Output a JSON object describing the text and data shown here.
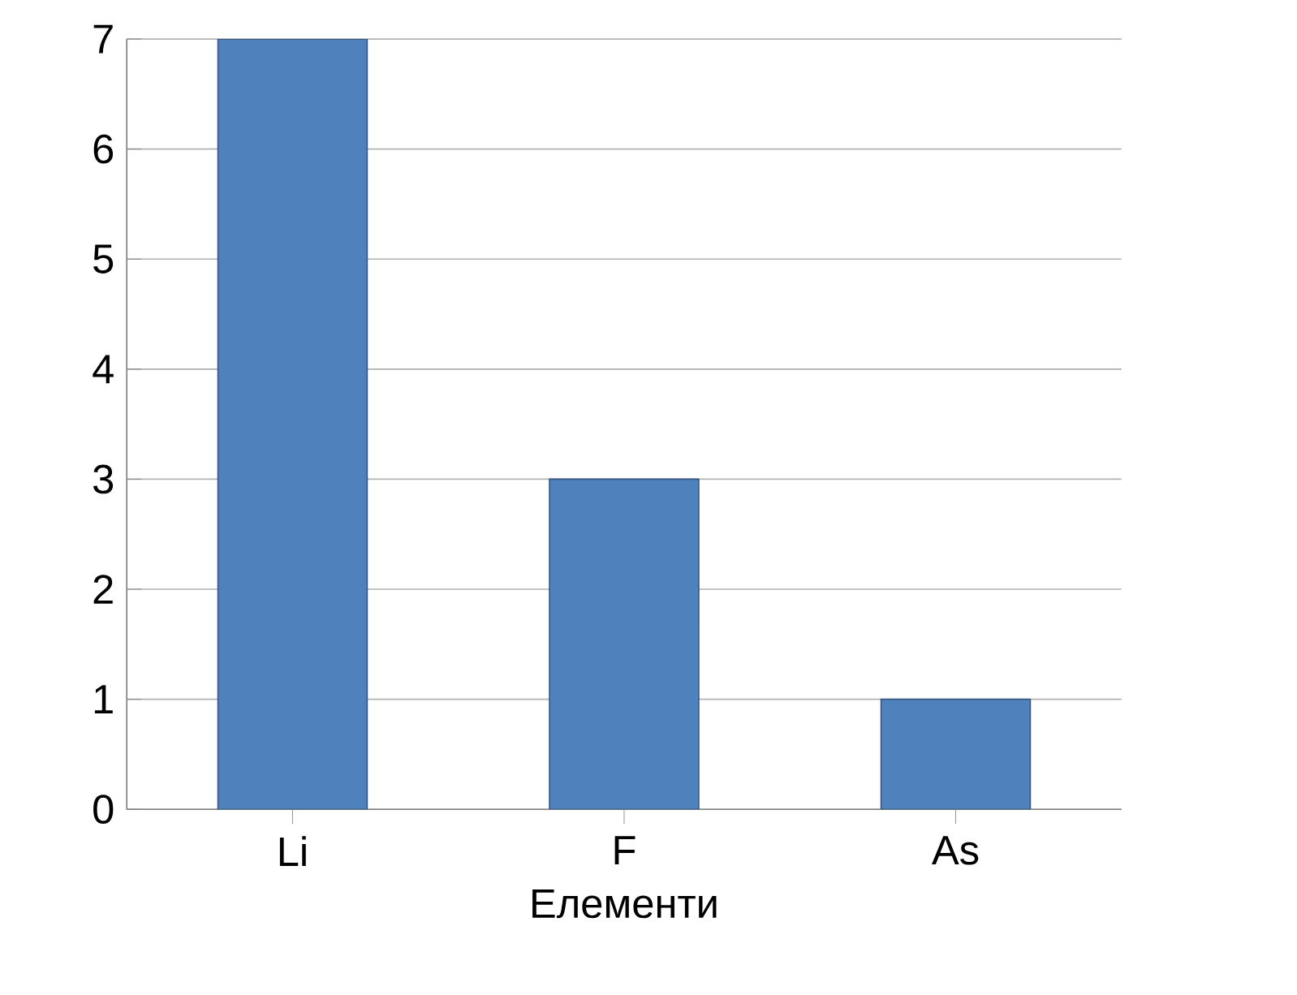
{
  "chart_data": {
    "type": "bar",
    "xlabel": "Елементи",
    "categories": [
      "Li",
      "F",
      "As"
    ],
    "values": [
      7,
      3,
      1
    ],
    "color": "#4f81bd",
    "ylim": [
      0,
      7
    ],
    "yticks": [
      0,
      1,
      2,
      3,
      4,
      5,
      6,
      7
    ],
    "grid": "y"
  }
}
